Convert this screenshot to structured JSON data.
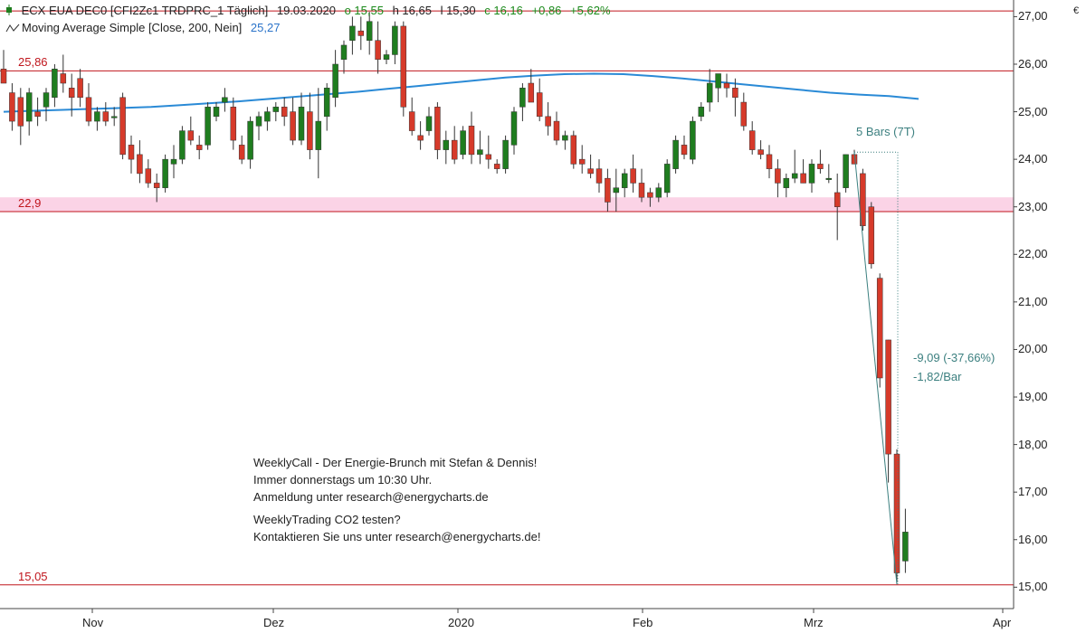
{
  "header": {
    "symbol": "ECX EUA DEC0 [CFI2Zc1 TRDPRC_1 Täglich]",
    "date": "19.03.2020",
    "open": "o 15,55",
    "high": "h 16,65",
    "low": "l 15,30",
    "close": "c 16,16",
    "change": "+0,86",
    "change_pct": "+5,62%",
    "indicator_name": "Moving Average Simple  [Close, 200, Nein]",
    "indicator_value": "25,27",
    "currency": "€"
  },
  "levels": [
    {
      "value": 27.12,
      "label": ""
    },
    {
      "value": 25.86,
      "label": "25,86"
    },
    {
      "value": 22.9,
      "label": "22,9"
    },
    {
      "value": 15.05,
      "label": "15,05"
    }
  ],
  "zone": {
    "from": 22.9,
    "to": 23.2
  },
  "annotations": {
    "bars": "5 Bars (7T)",
    "delta": "-9,09 (-37,66%)",
    "per_bar": "-1,82/Bar"
  },
  "message": {
    "line1": "WeeklyCall - Der Energie-Brunch mit Stefan & Dennis!",
    "line2": "Immer donnerstags um 10:30 Uhr.",
    "line3": "Anmeldung unter research@energycharts.de",
    "line4": "WeeklyTrading CO2 testen?",
    "line5": "Kontaktieren Sie uns unter research@energycharts.de!"
  },
  "colors": {
    "up": "#1f7d1f",
    "down": "#d63a2a",
    "ma": "#2a8ad6",
    "level": "#c0161d",
    "zone": "#fbd3e6",
    "measure": "#3b7f7f"
  },
  "chart_data": {
    "type": "candlestick",
    "x_labels": [
      "Nov",
      "Dez",
      "2020",
      "Feb",
      "Mrz",
      "Apr"
    ],
    "y_ticks": [
      "15,00",
      "16,00",
      "17,00",
      "18,00",
      "19,00",
      "20,00",
      "21,00",
      "22,00",
      "23,00",
      "24,00",
      "25,00",
      "26,00",
      "27,00"
    ],
    "ylim": [
      14.55,
      27.35
    ],
    "bars": [
      {
        "o": 25.9,
        "h": 26.3,
        "l": 25.7,
        "c": 25.6
      },
      {
        "o": 25.4,
        "h": 25.6,
        "l": 24.6,
        "c": 24.8
      },
      {
        "o": 25.3,
        "h": 25.5,
        "l": 24.3,
        "c": 24.7
      },
      {
        "o": 24.8,
        "h": 25.5,
        "l": 24.5,
        "c": 25.4
      },
      {
        "o": 25.0,
        "h": 25.3,
        "l": 24.7,
        "c": 24.9
      },
      {
        "o": 25.1,
        "h": 25.5,
        "l": 24.8,
        "c": 25.4
      },
      {
        "o": 25.3,
        "h": 26.0,
        "l": 25.1,
        "c": 25.9
      },
      {
        "o": 25.8,
        "h": 26.2,
        "l": 25.4,
        "c": 25.6
      },
      {
        "o": 25.5,
        "h": 25.8,
        "l": 24.9,
        "c": 25.3
      },
      {
        "o": 25.7,
        "h": 25.9,
        "l": 25.1,
        "c": 25.3
      },
      {
        "o": 25.3,
        "h": 25.6,
        "l": 24.7,
        "c": 24.8
      },
      {
        "o": 24.8,
        "h": 25.1,
        "l": 24.6,
        "c": 25.0
      },
      {
        "o": 25.0,
        "h": 25.2,
        "l": 24.7,
        "c": 24.8
      },
      {
        "o": 24.9,
        "h": 25.1,
        "l": 24.7,
        "c": 24.9
      },
      {
        "o": 25.3,
        "h": 25.4,
        "l": 24.0,
        "c": 24.1
      },
      {
        "o": 24.3,
        "h": 24.5,
        "l": 23.7,
        "c": 24.0
      },
      {
        "o": 24.1,
        "h": 24.4,
        "l": 23.5,
        "c": 23.7
      },
      {
        "o": 23.8,
        "h": 24.0,
        "l": 23.4,
        "c": 23.5
      },
      {
        "o": 23.5,
        "h": 23.7,
        "l": 23.1,
        "c": 23.4
      },
      {
        "o": 23.4,
        "h": 24.1,
        "l": 23.3,
        "c": 24.0
      },
      {
        "o": 23.9,
        "h": 24.3,
        "l": 23.6,
        "c": 24.0
      },
      {
        "o": 24.0,
        "h": 24.7,
        "l": 23.9,
        "c": 24.6
      },
      {
        "o": 24.6,
        "h": 24.9,
        "l": 24.3,
        "c": 24.4
      },
      {
        "o": 24.3,
        "h": 24.5,
        "l": 24.0,
        "c": 24.2
      },
      {
        "o": 24.3,
        "h": 25.2,
        "l": 24.2,
        "c": 25.1
      },
      {
        "o": 24.9,
        "h": 25.2,
        "l": 24.8,
        "c": 25.1
      },
      {
        "o": 25.2,
        "h": 25.5,
        "l": 25.0,
        "c": 25.3
      },
      {
        "o": 25.1,
        "h": 25.3,
        "l": 24.2,
        "c": 24.4
      },
      {
        "o": 24.3,
        "h": 24.5,
        "l": 23.9,
        "c": 24.0
      },
      {
        "o": 24.0,
        "h": 24.9,
        "l": 23.8,
        "c": 24.8
      },
      {
        "o": 24.7,
        "h": 25.0,
        "l": 24.4,
        "c": 24.9
      },
      {
        "o": 24.8,
        "h": 25.1,
        "l": 24.6,
        "c": 25.0
      },
      {
        "o": 25.0,
        "h": 25.2,
        "l": 24.8,
        "c": 25.1
      },
      {
        "o": 25.1,
        "h": 25.3,
        "l": 24.7,
        "c": 24.9
      },
      {
        "o": 25.0,
        "h": 25.3,
        "l": 24.3,
        "c": 24.4
      },
      {
        "o": 24.4,
        "h": 25.4,
        "l": 24.3,
        "c": 25.1
      },
      {
        "o": 25.0,
        "h": 25.4,
        "l": 24.0,
        "c": 24.2
      },
      {
        "o": 24.2,
        "h": 25.5,
        "l": 23.6,
        "c": 24.8
      },
      {
        "o": 24.9,
        "h": 25.6,
        "l": 24.6,
        "c": 25.5
      },
      {
        "o": 25.3,
        "h": 26.3,
        "l": 25.1,
        "c": 26.0
      },
      {
        "o": 26.1,
        "h": 26.5,
        "l": 25.8,
        "c": 26.4
      },
      {
        "o": 26.5,
        "h": 27.0,
        "l": 26.2,
        "c": 26.8
      },
      {
        "o": 26.7,
        "h": 27.0,
        "l": 26.3,
        "c": 26.6
      },
      {
        "o": 26.5,
        "h": 27.1,
        "l": 26.2,
        "c": 26.9
      },
      {
        "o": 26.5,
        "h": 26.9,
        "l": 25.8,
        "c": 26.1
      },
      {
        "o": 26.1,
        "h": 26.3,
        "l": 26.0,
        "c": 26.2
      },
      {
        "o": 26.2,
        "h": 26.9,
        "l": 26.0,
        "c": 26.8
      },
      {
        "o": 26.8,
        "h": 26.9,
        "l": 24.9,
        "c": 25.1
      },
      {
        "o": 25.0,
        "h": 25.3,
        "l": 24.5,
        "c": 24.6
      },
      {
        "o": 24.5,
        "h": 24.8,
        "l": 24.2,
        "c": 24.4
      },
      {
        "o": 24.6,
        "h": 25.1,
        "l": 24.5,
        "c": 24.9
      },
      {
        "o": 25.1,
        "h": 25.2,
        "l": 24.0,
        "c": 24.2
      },
      {
        "o": 24.2,
        "h": 24.6,
        "l": 23.9,
        "c": 24.4
      },
      {
        "o": 24.4,
        "h": 24.7,
        "l": 23.9,
        "c": 24.0
      },
      {
        "o": 24.1,
        "h": 24.7,
        "l": 24.0,
        "c": 24.6
      },
      {
        "o": 24.7,
        "h": 25.0,
        "l": 23.9,
        "c": 24.1
      },
      {
        "o": 24.1,
        "h": 24.6,
        "l": 23.9,
        "c": 24.2
      },
      {
        "o": 24.1,
        "h": 24.5,
        "l": 23.8,
        "c": 24.0
      },
      {
        "o": 23.9,
        "h": 24.0,
        "l": 23.7,
        "c": 23.8
      },
      {
        "o": 23.8,
        "h": 24.5,
        "l": 23.7,
        "c": 24.4
      },
      {
        "o": 24.3,
        "h": 25.1,
        "l": 24.1,
        "c": 25.0
      },
      {
        "o": 25.1,
        "h": 25.6,
        "l": 24.8,
        "c": 25.5
      },
      {
        "o": 25.6,
        "h": 25.9,
        "l": 25.3,
        "c": 25.2
      },
      {
        "o": 25.4,
        "h": 25.7,
        "l": 24.8,
        "c": 24.9
      },
      {
        "o": 24.9,
        "h": 25.2,
        "l": 24.5,
        "c": 24.7
      },
      {
        "o": 24.8,
        "h": 25.0,
        "l": 24.3,
        "c": 24.4
      },
      {
        "o": 24.4,
        "h": 24.6,
        "l": 24.2,
        "c": 24.5
      },
      {
        "o": 24.5,
        "h": 24.6,
        "l": 23.8,
        "c": 23.9
      },
      {
        "o": 24.0,
        "h": 24.3,
        "l": 23.7,
        "c": 23.9
      },
      {
        "o": 23.8,
        "h": 24.1,
        "l": 23.6,
        "c": 23.7
      },
      {
        "o": 23.8,
        "h": 24.0,
        "l": 23.3,
        "c": 23.5
      },
      {
        "o": 23.6,
        "h": 23.8,
        "l": 22.9,
        "c": 23.1
      },
      {
        "o": 23.3,
        "h": 23.8,
        "l": 22.9,
        "c": 23.4
      },
      {
        "o": 23.4,
        "h": 23.8,
        "l": 23.2,
        "c": 23.7
      },
      {
        "o": 23.8,
        "h": 24.1,
        "l": 23.3,
        "c": 23.5
      },
      {
        "o": 23.5,
        "h": 23.8,
        "l": 23.1,
        "c": 23.2
      },
      {
        "o": 23.3,
        "h": 23.4,
        "l": 23.0,
        "c": 23.2
      },
      {
        "o": 23.2,
        "h": 23.5,
        "l": 23.1,
        "c": 23.4
      },
      {
        "o": 23.3,
        "h": 24.0,
        "l": 23.2,
        "c": 23.9
      },
      {
        "o": 23.8,
        "h": 24.5,
        "l": 23.7,
        "c": 24.4
      },
      {
        "o": 24.3,
        "h": 24.5,
        "l": 24.0,
        "c": 24.1
      },
      {
        "o": 24.0,
        "h": 24.9,
        "l": 23.9,
        "c": 24.8
      },
      {
        "o": 24.9,
        "h": 25.2,
        "l": 24.8,
        "c": 25.1
      },
      {
        "o": 25.2,
        "h": 25.9,
        "l": 25.0,
        "c": 25.6
      },
      {
        "o": 25.5,
        "h": 25.8,
        "l": 25.2,
        "c": 25.8
      },
      {
        "o": 25.6,
        "h": 25.8,
        "l": 25.3,
        "c": 25.5
      },
      {
        "o": 25.5,
        "h": 25.7,
        "l": 24.9,
        "c": 25.3
      },
      {
        "o": 25.2,
        "h": 25.4,
        "l": 24.6,
        "c": 24.7
      },
      {
        "o": 24.6,
        "h": 24.8,
        "l": 24.1,
        "c": 24.2
      },
      {
        "o": 24.2,
        "h": 24.4,
        "l": 24.0,
        "c": 24.1
      },
      {
        "o": 24.1,
        "h": 24.3,
        "l": 23.6,
        "c": 23.8
      },
      {
        "o": 23.8,
        "h": 24.0,
        "l": 23.2,
        "c": 23.5
      },
      {
        "o": 23.4,
        "h": 23.7,
        "l": 23.2,
        "c": 23.6
      },
      {
        "o": 23.6,
        "h": 24.2,
        "l": 23.5,
        "c": 23.7
      },
      {
        "o": 23.7,
        "h": 24.0,
        "l": 23.5,
        "c": 23.5
      },
      {
        "o": 23.5,
        "h": 24.0,
        "l": 23.3,
        "c": 23.9
      },
      {
        "o": 23.9,
        "h": 24.2,
        "l": 23.7,
        "c": 23.8
      },
      {
        "o": 23.6,
        "h": 23.9,
        "l": 23.5,
        "c": 23.6
      },
      {
        "o": 23.3,
        "h": 23.7,
        "l": 22.3,
        "c": 23.0
      },
      {
        "o": 23.4,
        "h": 24.1,
        "l": 23.3,
        "c": 24.1
      },
      {
        "o": 24.1,
        "h": 24.2,
        "l": 23.9,
        "c": 23.9
      },
      {
        "o": 23.7,
        "h": 23.8,
        "l": 22.5,
        "c": 22.6
      },
      {
        "o": 23.0,
        "h": 23.1,
        "l": 21.7,
        "c": 21.8
      },
      {
        "o": 21.5,
        "h": 21.6,
        "l": 19.2,
        "c": 19.4
      },
      {
        "o": 20.2,
        "h": 20.2,
        "l": 17.2,
        "c": 17.8
      },
      {
        "o": 17.8,
        "h": 17.9,
        "l": 15.1,
        "c": 15.3
      },
      {
        "o": 15.55,
        "h": 16.65,
        "l": 15.3,
        "c": 16.16
      }
    ],
    "ma200": [
      25.0,
      25.02,
      25.04,
      25.06,
      25.08,
      25.1,
      25.14,
      25.18,
      25.22,
      25.27,
      25.32,
      25.37,
      25.42,
      25.48,
      25.54,
      25.6,
      25.66,
      25.72,
      25.76,
      25.79,
      25.8,
      25.79,
      25.75,
      25.7,
      25.64,
      25.58,
      25.52,
      25.46,
      25.4,
      25.36,
      25.33,
      25.27
    ]
  }
}
